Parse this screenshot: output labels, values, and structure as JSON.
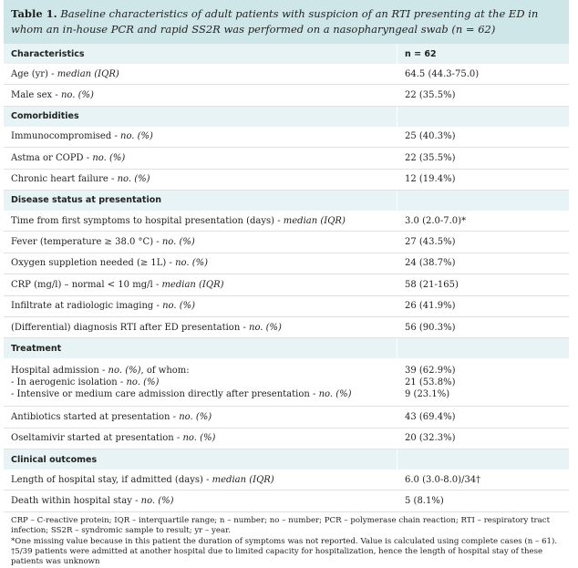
{
  "caption": {
    "label": "Table 1.",
    "text": "Baseline characteristics of adult patients with suspicion of an RTI presenting at the ED in whom an in-house PCR and rapid SS2R was performed on a nasopharyngeal swab (n = 62)"
  },
  "header": {
    "col1": "Characteristics",
    "col2": "n = 62"
  },
  "rows": [
    {
      "type": "row",
      "label": "Age (yr)",
      "qual": "median (IQR)",
      "value": "64.5 (44.3-75.0)"
    },
    {
      "type": "row",
      "label": "Male sex",
      "qual": "no. (%)",
      "value": "22 (35.5%)"
    },
    {
      "type": "section",
      "label": "Comorbidities"
    },
    {
      "type": "row",
      "label": "Immunocompromised",
      "qual": "no. (%)",
      "value": "25 (40.3%)"
    },
    {
      "type": "row",
      "label": "Astma or COPD",
      "qual": "no. (%)",
      "value": "22 (35.5%)"
    },
    {
      "type": "row",
      "label": "Chronic heart failure",
      "qual": "no. (%)",
      "value": "12 (19.4%)"
    },
    {
      "type": "section",
      "label": "Disease status at presentation"
    },
    {
      "type": "row",
      "label": "Time from first symptoms to hospital presentation (days)",
      "qual": "median (IQR)",
      "value": "3.0 (2.0-7.0)*"
    },
    {
      "type": "row",
      "label": "Fever (temperature ≥ 38.0 °C)",
      "qual": "no. (%)",
      "value": "27 (43.5%)"
    },
    {
      "type": "row",
      "label": "Oxygen suppletion needed (≥ 1L)",
      "qual": "no. (%)",
      "value": "24 (38.7%)"
    },
    {
      "type": "row",
      "label": "CRP (mg/l) – normal < 10 mg/l",
      "qual": "median (IQR)",
      "value": "58 (21-165)"
    },
    {
      "type": "row",
      "label": "Infiltrate at radiologic imaging",
      "qual": "no. (%)",
      "value": "26 (41.9%)"
    },
    {
      "type": "row",
      "label": "(Differential) diagnosis RTI after ED presentation",
      "qual": "no. (%)",
      "value": "56 (90.3%)"
    },
    {
      "type": "section",
      "label": "Treatment"
    },
    {
      "type": "multi",
      "lines": [
        {
          "label": "Hospital admission",
          "qual": "no. (%)",
          "suffix": ", of whom:",
          "value": "39 (62.9%)"
        },
        {
          "label": "- In aerogenic isolation",
          "qual": "no. (%)",
          "suffix": "",
          "value": "21 (53.8%)"
        },
        {
          "label": "- Intensive or medium care admission directly after presentation",
          "qual": "no. (%)",
          "suffix": "",
          "value": "9 (23.1%)"
        }
      ]
    },
    {
      "type": "row",
      "label": "Antibiotics started at presentation",
      "qual": "no. (%)",
      "value": "43 (69.4%)"
    },
    {
      "type": "row",
      "label": "Oseltamivir started at presentation",
      "qual": "no. (%)",
      "value": "20 (32.3%)"
    },
    {
      "type": "section",
      "label": "Clinical outcomes"
    },
    {
      "type": "row",
      "label": "Length of hospital stay, if admitted (days)",
      "qual": "median (IQR)",
      "value": "6.0 (3.0-8.0)/34†"
    },
    {
      "type": "row",
      "label": "Death within hospital stay",
      "qual": "no. (%)",
      "value": "5 (8.1%)"
    }
  ],
  "footnotes": [
    "CRP – C-reactive protein; IQR – interquartile range; n – number; no – number; PCR – polymerase chain reaction; RTI – respiratory tract infection; SS2R – syndromic sample to result; yr – year.",
    "*One missing value because in this patient the duration of symptoms was not reported. Value is calculated using complete cases (n – 61).",
    "†5/39 patients were admitted at another hospital due to limited capacity for hospitalization, hence the length of hospital stay of these patients was unknown"
  ]
}
